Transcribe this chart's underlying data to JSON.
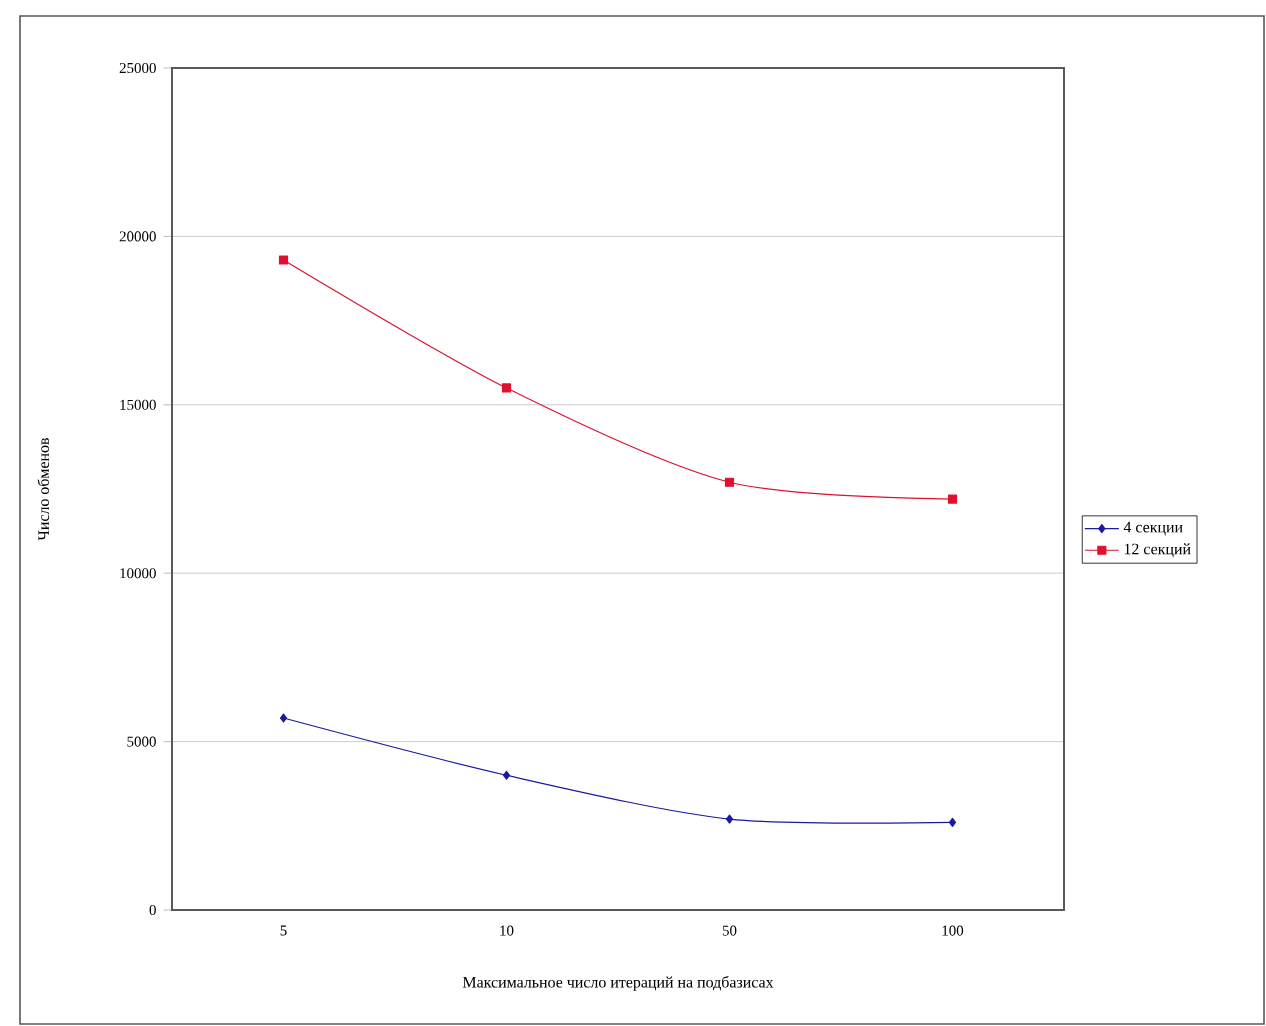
{
  "chart_data": {
    "type": "line",
    "xlabel": "Максимальное число итераций на подбазисах",
    "ylabel": "Число обменов",
    "categories": [
      "5",
      "10",
      "50",
      "100"
    ],
    "series": [
      {
        "name": "4 секции",
        "color": "#1a1aa0",
        "marker": "diamond",
        "values": [
          5700,
          4000,
          2700,
          2600
        ]
      },
      {
        "name": "12 секций",
        "color": "#e0102f",
        "marker": "square",
        "values": [
          19300,
          15500,
          12700,
          12200
        ]
      }
    ],
    "ylim": [
      0,
      25000
    ],
    "yticks": [
      0,
      5000,
      10000,
      15000,
      20000,
      25000
    ],
    "grid": "y",
    "legend": "right",
    "line_style": "solid"
  }
}
